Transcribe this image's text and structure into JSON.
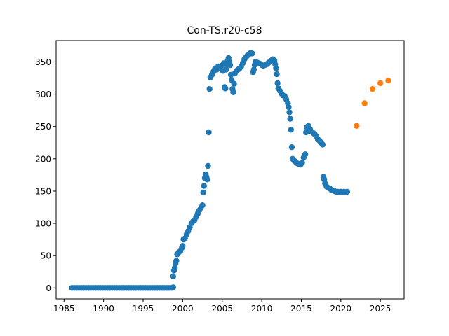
{
  "chart_data": {
    "type": "scatter",
    "title": "Con-TS.r20-c58",
    "xlabel": "",
    "ylabel": "",
    "xlim": [
      1984.0,
      2028.0
    ],
    "ylim": [
      -17,
      383
    ],
    "x_ticks": [
      1985,
      1990,
      1995,
      2000,
      2005,
      2010,
      2015,
      2020,
      2025
    ],
    "x_tick_labels": [
      "1985",
      "1990",
      "1995",
      "2000",
      "2005",
      "2010",
      "2015",
      "2020",
      "2025"
    ],
    "y_ticks": [
      0,
      50,
      100,
      150,
      200,
      250,
      300,
      350
    ],
    "y_tick_labels": [
      "0",
      "50",
      "100",
      "150",
      "200",
      "250",
      "300",
      "350"
    ],
    "grid": false,
    "series": [
      {
        "color": "#1f77b4",
        "points": [
          [
            1986.0,
            0
          ],
          [
            1986.3,
            0
          ],
          [
            1986.6,
            0
          ],
          [
            1986.9,
            0
          ],
          [
            1987.2,
            0
          ],
          [
            1987.5,
            0
          ],
          [
            1987.8,
            0
          ],
          [
            1988.1,
            0
          ],
          [
            1988.4,
            0
          ],
          [
            1988.7,
            0
          ],
          [
            1989.0,
            0
          ],
          [
            1989.3,
            0
          ],
          [
            1989.6,
            0
          ],
          [
            1989.9,
            0
          ],
          [
            1990.2,
            0
          ],
          [
            1990.5,
            0
          ],
          [
            1990.8,
            0
          ],
          [
            1991.1,
            0
          ],
          [
            1991.4,
            0
          ],
          [
            1991.7,
            0
          ],
          [
            1992.0,
            0
          ],
          [
            1992.3,
            0
          ],
          [
            1992.6,
            0
          ],
          [
            1992.9,
            0
          ],
          [
            1993.2,
            0
          ],
          [
            1993.5,
            0
          ],
          [
            1993.8,
            0
          ],
          [
            1994.1,
            0
          ],
          [
            1994.4,
            0
          ],
          [
            1994.7,
            0
          ],
          [
            1995.0,
            0
          ],
          [
            1995.3,
            0
          ],
          [
            1995.6,
            0
          ],
          [
            1995.9,
            0
          ],
          [
            1996.2,
            0
          ],
          [
            1996.5,
            0
          ],
          [
            1996.8,
            0
          ],
          [
            1997.1,
            0
          ],
          [
            1997.4,
            0
          ],
          [
            1997.7,
            0
          ],
          [
            1998.0,
            0
          ],
          [
            1998.3,
            0
          ],
          [
            1998.6,
            0
          ],
          [
            1998.8,
            1
          ],
          [
            1998.8,
            18
          ],
          [
            1998.9,
            27
          ],
          [
            1999.0,
            31
          ],
          [
            1999.1,
            38
          ],
          [
            1999.2,
            42
          ],
          [
            1999.3,
            52
          ],
          [
            1999.5,
            55
          ],
          [
            1999.7,
            57
          ],
          [
            1999.9,
            62
          ],
          [
            2000.0,
            65
          ],
          [
            2000.1,
            75
          ],
          [
            2000.3,
            77
          ],
          [
            2000.5,
            83
          ],
          [
            2000.7,
            88
          ],
          [
            2000.9,
            94
          ],
          [
            2001.1,
            100
          ],
          [
            2001.3,
            103
          ],
          [
            2001.5,
            105
          ],
          [
            2001.7,
            110
          ],
          [
            2001.9,
            115
          ],
          [
            2002.1,
            120
          ],
          [
            2002.3,
            124
          ],
          [
            2002.5,
            128
          ],
          [
            2002.6,
            148
          ],
          [
            2002.7,
            158
          ],
          [
            2002.8,
            170
          ],
          [
            2002.9,
            176
          ],
          [
            2003.0,
            172
          ],
          [
            2003.1,
            168
          ],
          [
            2003.2,
            189
          ],
          [
            2003.3,
            241
          ],
          [
            2003.4,
            308
          ],
          [
            2003.5,
            326
          ],
          [
            2003.7,
            330
          ],
          [
            2003.9,
            335
          ],
          [
            2004.1,
            340
          ],
          [
            2004.3,
            338
          ],
          [
            2004.5,
            343
          ],
          [
            2004.7,
            340
          ],
          [
            2004.9,
            344
          ],
          [
            2005.1,
            336
          ],
          [
            2005.2,
            348
          ],
          [
            2005.3,
            311
          ],
          [
            2005.4,
            309
          ],
          [
            2005.5,
            338
          ],
          [
            2005.6,
            345
          ],
          [
            2005.7,
            352
          ],
          [
            2005.8,
            356
          ],
          [
            2005.9,
            350
          ],
          [
            2006.0,
            345
          ],
          [
            2006.1,
            330
          ],
          [
            2006.2,
            322
          ],
          [
            2006.3,
            308
          ],
          [
            2006.4,
            303
          ],
          [
            2006.5,
            316
          ],
          [
            2006.6,
            332
          ],
          [
            2006.8,
            336
          ],
          [
            2007.0,
            338
          ],
          [
            2007.2,
            340
          ],
          [
            2007.4,
            343
          ],
          [
            2007.6,
            348
          ],
          [
            2007.8,
            354
          ],
          [
            2008.0,
            357
          ],
          [
            2008.2,
            360
          ],
          [
            2008.4,
            362
          ],
          [
            2008.6,
            364
          ],
          [
            2008.8,
            363
          ],
          [
            2008.9,
            334
          ],
          [
            2009.0,
            338
          ],
          [
            2009.1,
            345
          ],
          [
            2009.2,
            350
          ],
          [
            2009.4,
            349
          ],
          [
            2009.6,
            348
          ],
          [
            2009.8,
            347
          ],
          [
            2010.0,
            345
          ],
          [
            2010.2,
            344
          ],
          [
            2010.4,
            345
          ],
          [
            2010.6,
            346
          ],
          [
            2010.8,
            348
          ],
          [
            2011.0,
            350
          ],
          [
            2011.2,
            352
          ],
          [
            2011.4,
            354
          ],
          [
            2011.6,
            352
          ],
          [
            2011.7,
            346
          ],
          [
            2011.8,
            340
          ],
          [
            2011.9,
            331
          ],
          [
            2012.0,
            317
          ],
          [
            2012.1,
            309
          ],
          [
            2012.3,
            305
          ],
          [
            2012.5,
            301
          ],
          [
            2012.7,
            298
          ],
          [
            2012.9,
            297
          ],
          [
            2013.1,
            292
          ],
          [
            2013.3,
            286
          ],
          [
            2013.4,
            280
          ],
          [
            2013.5,
            272
          ],
          [
            2013.6,
            262
          ],
          [
            2013.7,
            245
          ],
          [
            2013.8,
            218
          ],
          [
            2013.9,
            200
          ],
          [
            2014.1,
            197
          ],
          [
            2014.3,
            195
          ],
          [
            2014.5,
            193
          ],
          [
            2014.7,
            192
          ],
          [
            2014.9,
            191
          ],
          [
            2015.1,
            194
          ],
          [
            2015.3,
            202
          ],
          [
            2015.5,
            207
          ],
          [
            2015.6,
            241
          ],
          [
            2015.7,
            249
          ],
          [
            2015.9,
            251
          ],
          [
            2016.1,
            246
          ],
          [
            2016.3,
            242
          ],
          [
            2016.5,
            240
          ],
          [
            2016.7,
            238
          ],
          [
            2016.9,
            235
          ],
          [
            2017.1,
            230
          ],
          [
            2017.3,
            228
          ],
          [
            2017.5,
            225
          ],
          [
            2017.7,
            222
          ],
          [
            2017.8,
            172
          ],
          [
            2017.9,
            168
          ],
          [
            2018.0,
            162
          ],
          [
            2018.2,
            157
          ],
          [
            2018.4,
            155
          ],
          [
            2018.6,
            154
          ],
          [
            2018.8,
            152
          ],
          [
            2019.0,
            151
          ],
          [
            2019.2,
            150
          ],
          [
            2019.4,
            149
          ],
          [
            2019.6,
            149
          ],
          [
            2019.8,
            148
          ],
          [
            2020.0,
            149
          ],
          [
            2020.2,
            148
          ],
          [
            2020.4,
            149
          ],
          [
            2020.6,
            148
          ],
          [
            2020.8,
            149
          ]
        ]
      },
      {
        "color": "#ff7f0e",
        "points": [
          [
            2022.0,
            251
          ],
          [
            2023.0,
            286
          ],
          [
            2024.0,
            308
          ],
          [
            2025.0,
            317
          ],
          [
            2026.0,
            321
          ]
        ]
      }
    ]
  }
}
